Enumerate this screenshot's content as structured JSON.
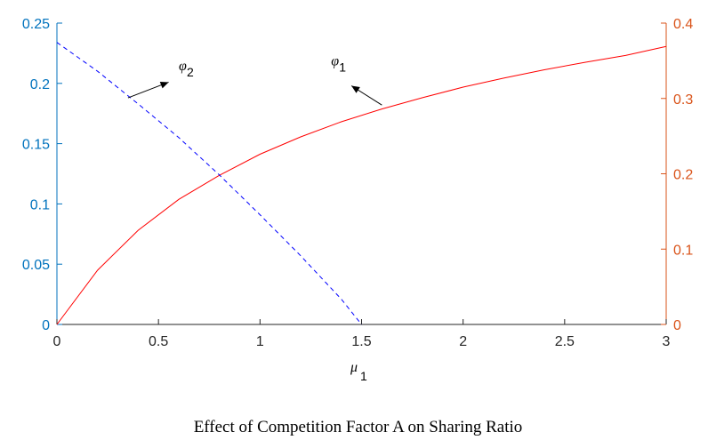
{
  "caption": "Effect of Competition Factor A on Sharing Ratio",
  "chart_data": {
    "type": "line",
    "title": "",
    "xlabel": {
      "symbol": "μ",
      "subscript": "1"
    },
    "xlim": [
      0,
      3
    ],
    "x_ticks": [
      "0",
      "0.5",
      "1",
      "1.5",
      "2",
      "2.5",
      "3"
    ],
    "left_axis": {
      "ylim": [
        0,
        0.25
      ],
      "ticks": [
        "0",
        "0.05",
        "0.1",
        "0.15",
        "0.2",
        "0.25"
      ],
      "color": "#0072BD"
    },
    "right_axis": {
      "ylim": [
        0,
        0.4
      ],
      "ticks": [
        "0",
        "0.1",
        "0.2",
        "0.3",
        "0.4"
      ],
      "color": "#D95319"
    },
    "grid": false,
    "series": [
      {
        "name": "φ1",
        "axis": "right",
        "color": "#FF0000",
        "style": "solid",
        "x": [
          0,
          0.2,
          0.4,
          0.6,
          0.8,
          1.0,
          1.2,
          1.4,
          1.6,
          1.8,
          2.0,
          2.2,
          2.4,
          2.6,
          2.8,
          3.0
        ],
        "y": [
          0,
          0.072,
          0.125,
          0.166,
          0.198,
          0.226,
          0.249,
          0.269,
          0.286,
          0.301,
          0.315,
          0.327,
          0.338,
          0.348,
          0.357,
          0.369
        ]
      },
      {
        "name": "φ2",
        "axis": "left",
        "color": "#0000FF",
        "style": "dashed",
        "x": [
          0,
          0.2,
          0.4,
          0.6,
          0.8,
          1.0,
          1.2,
          1.4,
          1.5
        ],
        "y": [
          0.234,
          0.21,
          0.183,
          0.155,
          0.124,
          0.091,
          0.057,
          0.021,
          0.0
        ]
      }
    ],
    "annotations": [
      {
        "symbol": "φ",
        "subscript": "2",
        "arrow_from": [
          0.35,
          0.188
        ],
        "arrow_to": [
          0.55,
          0.201
        ],
        "label_at": [
          0.6,
          0.211
        ]
      },
      {
        "symbol": "φ",
        "subscript": "1",
        "arrow_from": [
          1.6,
          0.182
        ],
        "arrow_to": [
          1.45,
          0.198
        ],
        "label_at": [
          1.35,
          0.215
        ]
      }
    ]
  }
}
